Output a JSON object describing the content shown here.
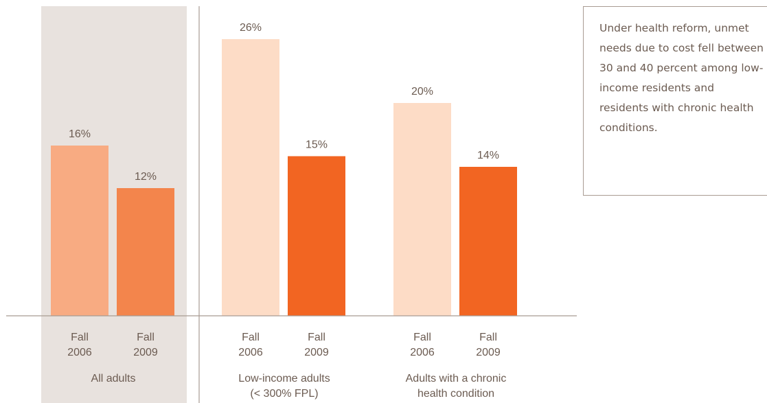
{
  "chart_data": {
    "type": "bar",
    "groups": [
      {
        "label_lines": [
          "All adults"
        ],
        "highlighted": true,
        "bars": [
          {
            "label_lines": [
              "Fall",
              "2006"
            ],
            "value": 16,
            "value_label": "16%",
            "color": "#f8ab82"
          },
          {
            "label_lines": [
              "Fall",
              "2009"
            ],
            "value": 12,
            "value_label": "12%",
            "color": "#f3854c"
          }
        ]
      },
      {
        "label_lines": [
          "Low-income adults",
          "(< 300% FPL)"
        ],
        "highlighted": false,
        "bars": [
          {
            "label_lines": [
              "Fall",
              "2006"
            ],
            "value": 26,
            "value_label": "26%",
            "color": "#fddcc6"
          },
          {
            "label_lines": [
              "Fall",
              "2009"
            ],
            "value": 15,
            "value_label": "15%",
            "color": "#f26522"
          }
        ]
      },
      {
        "label_lines": [
          "Adults with a chronic",
          "health condition"
        ],
        "highlighted": false,
        "bars": [
          {
            "label_lines": [
              "Fall",
              "2006"
            ],
            "value": 20,
            "value_label": "20%",
            "color": "#fddcc6"
          },
          {
            "label_lines": [
              "Fall",
              "2009"
            ],
            "value": 14,
            "value_label": "14%",
            "color": "#f26522"
          }
        ]
      }
    ],
    "ylim": [
      0,
      30
    ],
    "grid": false,
    "colors": {
      "highlight_panel": "#e8e2de",
      "axis": "#a89b92",
      "text": "#6b5b51"
    }
  },
  "callout": {
    "text": "Under health reform, unmet needs due to cost fell between 30 and 40 percent among low-income residents and residents with chronic health conditions."
  }
}
